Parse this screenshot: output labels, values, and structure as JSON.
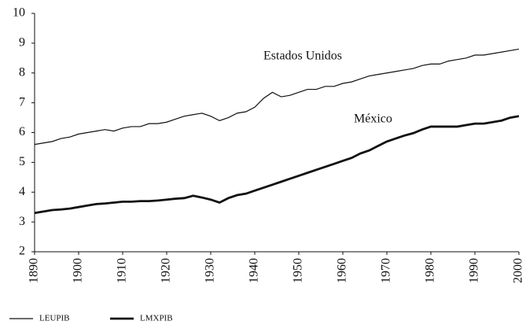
{
  "chart_data": {
    "type": "line",
    "annotations": [
      "Estados Unidos",
      "México"
    ],
    "x": [
      1890,
      1892,
      1894,
      1896,
      1898,
      1900,
      1902,
      1904,
      1906,
      1908,
      1910,
      1912,
      1914,
      1916,
      1918,
      1920,
      1922,
      1924,
      1926,
      1928,
      1930,
      1932,
      1934,
      1936,
      1938,
      1940,
      1942,
      1944,
      1946,
      1948,
      1950,
      1952,
      1954,
      1956,
      1958,
      1960,
      1962,
      1964,
      1966,
      1968,
      1970,
      1972,
      1974,
      1976,
      1978,
      1980,
      1982,
      1984,
      1986,
      1988,
      1990,
      1992,
      1994,
      1996,
      1998,
      2000
    ],
    "series": [
      {
        "name": "LEUPIB",
        "color": "#111111",
        "line_width": 1.2,
        "values": [
          5.6,
          5.65,
          5.7,
          5.8,
          5.85,
          5.95,
          6.0,
          6.05,
          6.1,
          6.05,
          6.15,
          6.2,
          6.2,
          6.3,
          6.3,
          6.35,
          6.45,
          6.55,
          6.6,
          6.65,
          6.55,
          6.4,
          6.5,
          6.65,
          6.7,
          6.85,
          7.15,
          7.35,
          7.2,
          7.25,
          7.35,
          7.45,
          7.45,
          7.55,
          7.55,
          7.65,
          7.7,
          7.8,
          7.9,
          7.95,
          8.0,
          8.05,
          8.1,
          8.15,
          8.25,
          8.3,
          8.3,
          8.4,
          8.45,
          8.5,
          8.6,
          8.6,
          8.65,
          8.7,
          8.75,
          8.8
        ]
      },
      {
        "name": "LMXPIB",
        "color": "#111111",
        "line_width": 2.8,
        "values": [
          3.3,
          3.35,
          3.4,
          3.42,
          3.45,
          3.5,
          3.55,
          3.6,
          3.62,
          3.65,
          3.68,
          3.68,
          3.7,
          3.7,
          3.72,
          3.75,
          3.78,
          3.8,
          3.88,
          3.82,
          3.75,
          3.65,
          3.8,
          3.9,
          3.95,
          4.05,
          4.15,
          4.25,
          4.35,
          4.45,
          4.55,
          4.65,
          4.75,
          4.85,
          4.95,
          5.05,
          5.15,
          5.3,
          5.4,
          5.55,
          5.7,
          5.8,
          5.9,
          5.98,
          6.1,
          6.2,
          6.2,
          6.2,
          6.2,
          6.25,
          6.3,
          6.3,
          6.35,
          6.4,
          6.5,
          6.55
        ]
      }
    ],
    "xlim": [
      1890,
      2000
    ],
    "xticks": [
      1890,
      1900,
      1910,
      1920,
      1930,
      1940,
      1950,
      1960,
      1970,
      1980,
      1990,
      2000
    ],
    "ylim": [
      2,
      10
    ],
    "yticks": [
      2,
      3,
      4,
      5,
      6,
      7,
      8,
      9,
      10
    ]
  }
}
